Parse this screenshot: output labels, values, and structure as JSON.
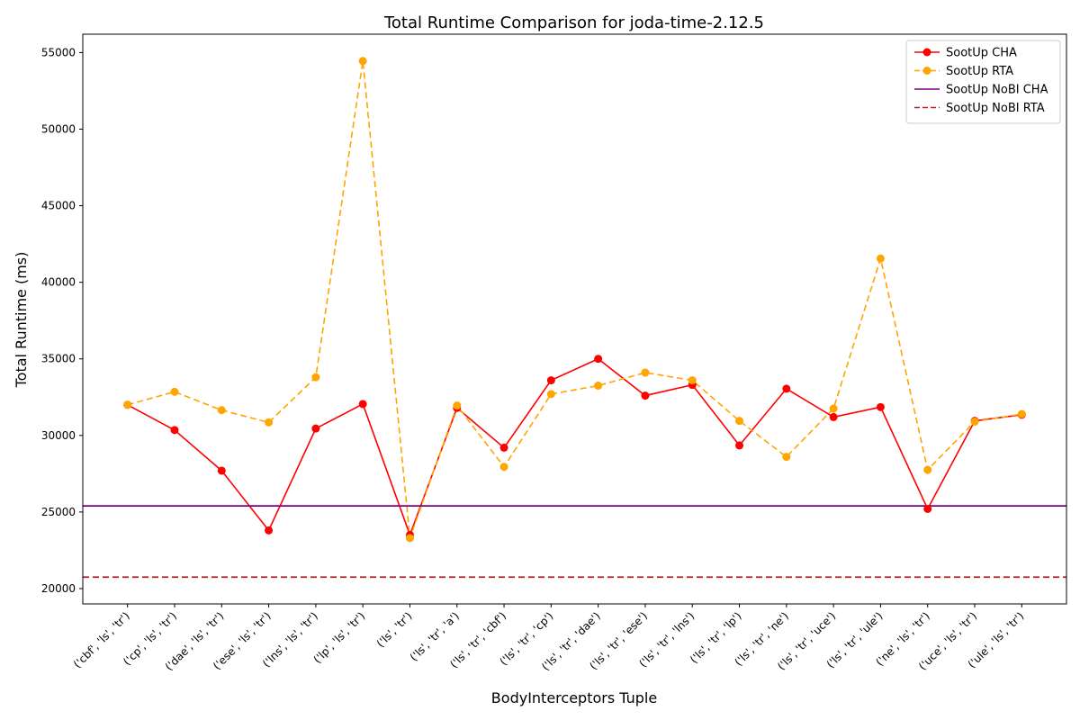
{
  "chart_data": {
    "type": "line",
    "title": "Total Runtime Comparison for joda-time-2.12.5",
    "xlabel": "BodyInterceptors Tuple",
    "ylabel": "Total Runtime (ms)",
    "ylim": [
      19000,
      56200
    ],
    "yticks": [
      20000,
      25000,
      30000,
      35000,
      40000,
      45000,
      50000,
      55000
    ],
    "grid": false,
    "legend_position": "top-right",
    "categories": [
      "('cbf', 'ls', 'tr')",
      "('cp', 'ls', 'tr')",
      "('dae', 'ls', 'tr')",
      "('ese', 'ls', 'tr')",
      "('lns', 'ls', 'tr')",
      "('lp', 'ls', 'tr')",
      "('ls', 'tr')",
      "('ls', 'tr', 'a')",
      "('ls', 'tr', 'cbf')",
      "('ls', 'tr', 'cp')",
      "('ls', 'tr', 'dae')",
      "('ls', 'tr', 'ese')",
      "('ls', 'tr', 'lns')",
      "('ls', 'tr', 'lp')",
      "('ls', 'tr', 'ne')",
      "('ls', 'tr', 'uce')",
      "('ls', 'tr', 'ule')",
      "('ne', 'ls', 'tr')",
      "('uce', 'ls', 'tr')",
      "('ule', 'ls', 'tr')"
    ],
    "series": [
      {
        "name": "SootUp CHA",
        "color": "#ff0000",
        "style": "solid-marker",
        "values": [
          32000,
          30350,
          27700,
          23800,
          30450,
          32050,
          23500,
          31800,
          29200,
          33600,
          35000,
          32600,
          33300,
          29350,
          33050,
          31200,
          31850,
          25200,
          30950,
          31350
        ]
      },
      {
        "name": "SootUp RTA",
        "color": "#ffa500",
        "style": "dashed-marker",
        "values": [
          32000,
          32850,
          31650,
          30850,
          33800,
          54450,
          23300,
          31950,
          27950,
          32700,
          33250,
          34100,
          33600,
          30950,
          28600,
          31750,
          41550,
          27750,
          30900,
          31400
        ]
      },
      {
        "name": "SootUp NoBI CHA",
        "color": "#800080",
        "style": "solid-hline",
        "value": 25400
      },
      {
        "name": "SootUp NoBI RTA",
        "color": "#b22222",
        "style": "dashed-hline",
        "value": 20750
      }
    ]
  }
}
